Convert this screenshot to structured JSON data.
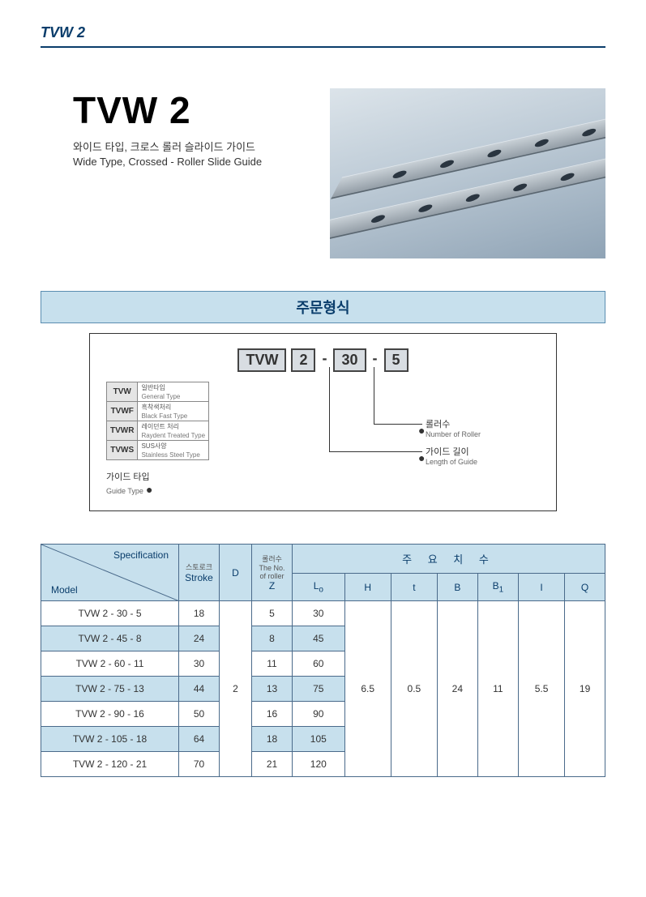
{
  "header_label": "TVW 2",
  "title": "TVW 2",
  "subtitle_ko": "와이드 타입, 크로스 롤러 슬라이드 가이드",
  "subtitle_en": "Wide Type, Crossed - Roller Slide Guide",
  "order_section_title": "주문형식",
  "order_code": {
    "p1": "TVW",
    "p2": "2",
    "p3": "30",
    "p4": "5"
  },
  "type_table": [
    {
      "code": "TVW",
      "ko": "일반타입",
      "en": "General Type"
    },
    {
      "code": "TVWF",
      "ko": "흑착색처리",
      "en": "Black Fast Type"
    },
    {
      "code": "TVWR",
      "ko": "레이던트 처리",
      "en": "Raydent Treated Type"
    },
    {
      "code": "TVWS",
      "ko": "SUS사양",
      "en": "Stainless Steel Type"
    }
  ],
  "labels": {
    "guide_type_ko": "가이드 타입",
    "guide_type_en": "Guide Type",
    "roller_ko": "롤러수",
    "roller_en": "Number of Roller",
    "length_ko": "가이드 길이",
    "length_en": "Length of Guide"
  },
  "spec_headers": {
    "specification": "Specification",
    "model": "Model",
    "stroke_ko": "스토로크",
    "stroke_en": "Stroke",
    "D": "D",
    "roller_ko": "롤러수",
    "roller_en": "The No.\nof roller",
    "Z": "Z",
    "dims_ko": "주    요    치    수",
    "Lo": "L",
    "Lo_sub": "o",
    "H": "H",
    "t": "t",
    "B": "B",
    "B1": "B",
    "B1_sub": "1",
    "I": "I",
    "Q": "Q"
  },
  "rows": [
    {
      "model": "TVW 2 - 30 - 5",
      "stroke": 18,
      "Z": 5,
      "Lo": 30
    },
    {
      "model": "TVW 2 - 45 - 8",
      "stroke": 24,
      "Z": 8,
      "Lo": 45
    },
    {
      "model": "TVW 2 - 60 - 11",
      "stroke": 30,
      "Z": 11,
      "Lo": 60
    },
    {
      "model": "TVW 2 - 75 - 13",
      "stroke": 44,
      "Z": 13,
      "Lo": 75
    },
    {
      "model": "TVW 2 - 90 - 16",
      "stroke": 50,
      "Z": 16,
      "Lo": 90
    },
    {
      "model": "TVW 2 - 105 - 18",
      "stroke": 64,
      "Z": 18,
      "Lo": 105
    },
    {
      "model": "TVW 2 - 120 - 21",
      "stroke": 70,
      "Z": 21,
      "Lo": 120
    }
  ],
  "shared": {
    "D": 2,
    "H": 6.5,
    "t": 0.5,
    "B": 24,
    "B1": 11,
    "I": 5.5,
    "Q": 19
  },
  "colors": {
    "header_blue": "#0a3d6b",
    "section_bg": "#c7e0ed",
    "border": "#4a6a8a"
  }
}
